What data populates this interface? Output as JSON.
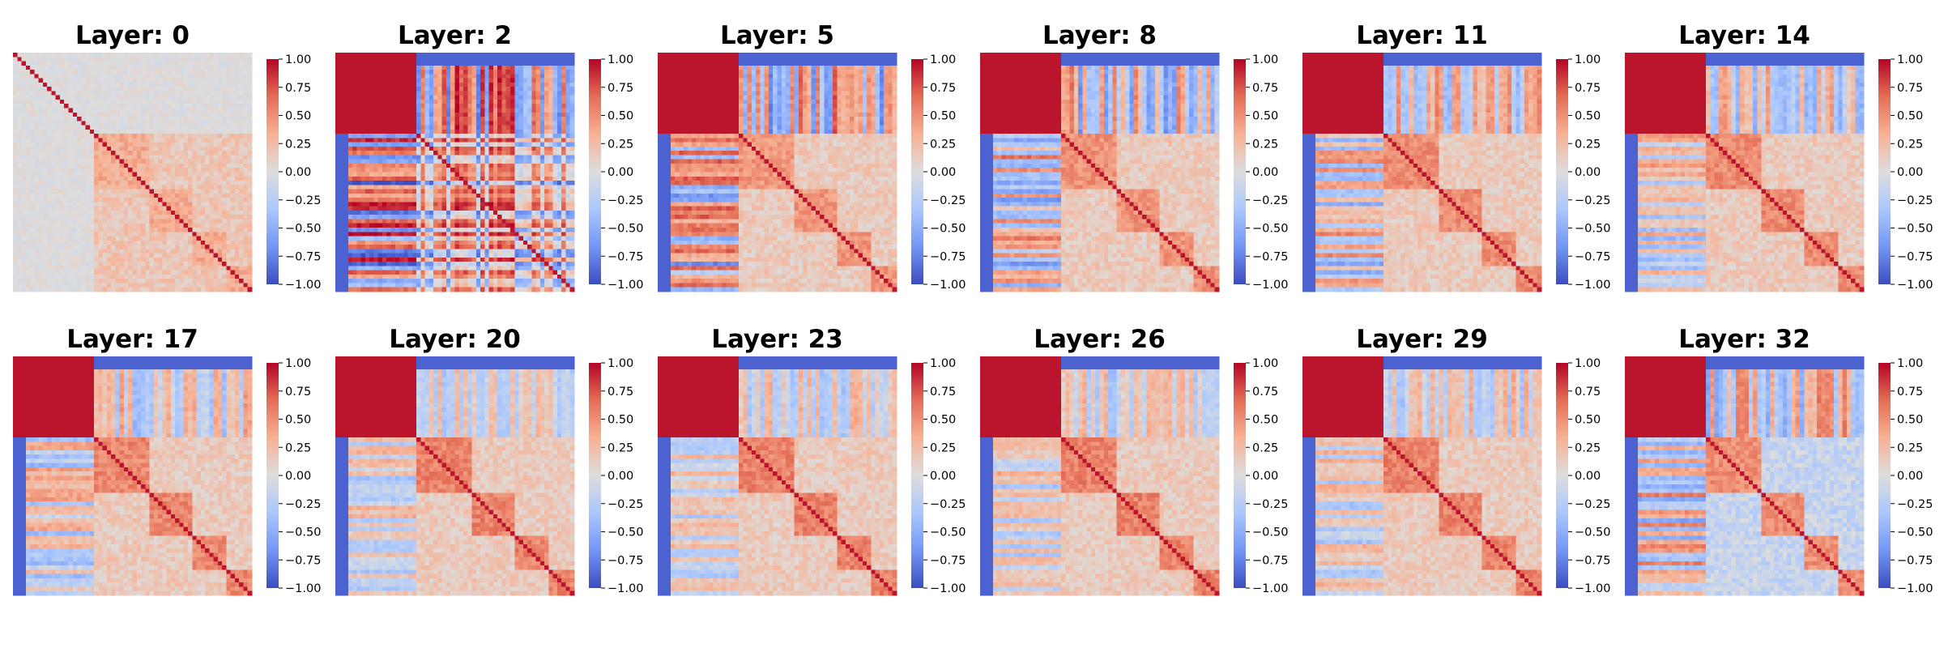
{
  "chart_data": {
    "type": "heatmap",
    "description": "Grid of correlation heatmaps per layer",
    "colormap": "coolwarm",
    "value_range": [
      -1.0,
      1.0
    ],
    "colormap_stops": [
      "#3b4cc0",
      "#7396f5",
      "#aac7fd",
      "#dddddd",
      "#f7b194",
      "#e46e56",
      "#b40426"
    ],
    "colorbar_ticks": [
      "1.00",
      "0.75",
      "0.50",
      "0.25",
      "0.00",
      "−0.25",
      "−0.50",
      "−0.75",
      "−1.00"
    ],
    "colorbar_tick_values": [
      1.0,
      0.75,
      0.5,
      0.25,
      0.0,
      -0.25,
      -0.5,
      -0.75,
      -1.0
    ],
    "panels": [
      {
        "title": "Layer: 0",
        "layer": 0,
        "strength": 0.15
      },
      {
        "title": "Layer: 2",
        "layer": 2,
        "strength": 1.0
      },
      {
        "title": "Layer: 5",
        "layer": 5,
        "strength": 0.75
      },
      {
        "title": "Layer: 8",
        "layer": 8,
        "strength": 0.65
      },
      {
        "title": "Layer: 11",
        "layer": 11,
        "strength": 0.55
      },
      {
        "title": "Layer: 14",
        "layer": 14,
        "strength": 0.5
      },
      {
        "title": "Layer: 17",
        "layer": 17,
        "strength": 0.45
      },
      {
        "title": "Layer: 20",
        "layer": 20,
        "strength": 0.35
      },
      {
        "title": "Layer: 23",
        "layer": 23,
        "strength": 0.35
      },
      {
        "title": "Layer: 26",
        "layer": 26,
        "strength": 0.35
      },
      {
        "title": "Layer: 29",
        "layer": 29,
        "strength": 0.35
      },
      {
        "title": "Layer: 32",
        "layer": 32,
        "strength": 0.6
      }
    ]
  }
}
